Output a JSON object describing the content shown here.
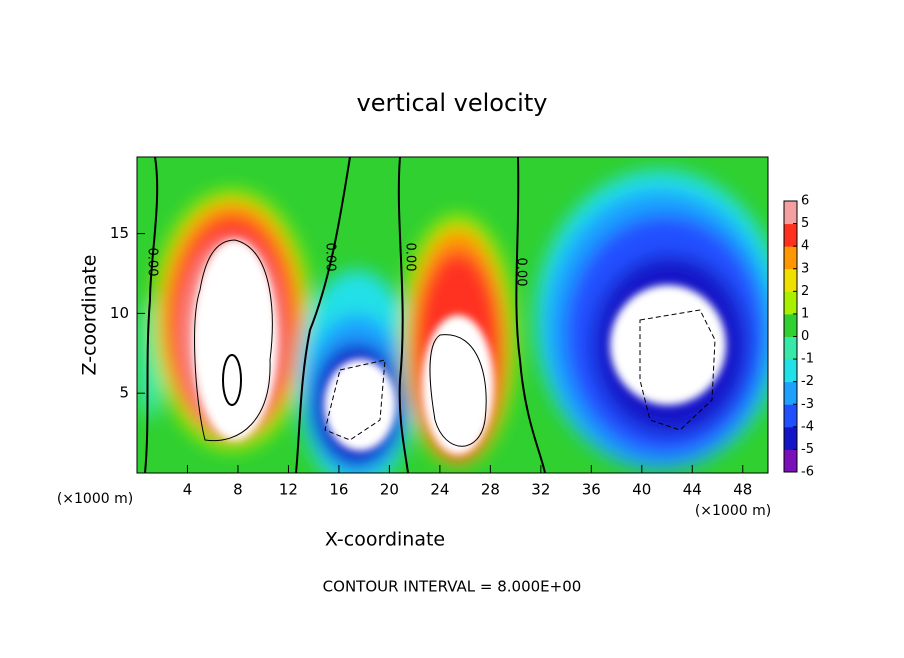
{
  "chart_data": {
    "type": "contour",
    "title": "vertical velocity",
    "x_label": "X-coordinate",
    "y_label": "Z-coordinate",
    "x_unit_left": "(×1000 m)",
    "x_unit_right": "(×1000 m)",
    "footer": "CONTOUR INTERVAL = 8.000E+00",
    "contour_labels": [
      "0.00",
      "0.00",
      "0.00",
      "0.00"
    ],
    "xlim": [
      0,
      50
    ],
    "xticks": [
      4,
      8,
      12,
      16,
      20,
      24,
      28,
      32,
      36,
      40,
      44,
      48
    ],
    "ylim": [
      0,
      19.8
    ],
    "yticks": [
      5,
      10,
      15
    ],
    "colorbar": {
      "lim": [
        -6,
        6
      ],
      "ticks": [
        -6,
        -5,
        -4,
        -3,
        -2,
        -1,
        0,
        1,
        2,
        3,
        4,
        5,
        6
      ],
      "colors": [
        "#7a10b8",
        "#1414c8",
        "#2050ff",
        "#1ea0ff",
        "#20e0e8",
        "#38e8a8",
        "#30d030",
        "#a8f000",
        "#f0e000",
        "#ff9800",
        "#ff3020",
        "#f4a0a0"
      ]
    }
  }
}
